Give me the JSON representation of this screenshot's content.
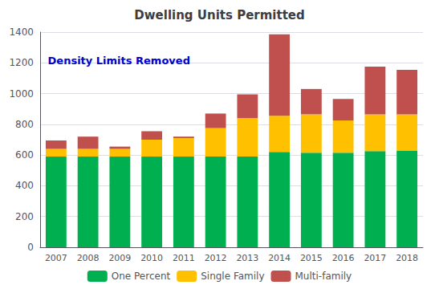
{
  "chart_data": {
    "type": "bar",
    "title": "Dwelling Units Permitted",
    "categories": [
      "2007",
      "2008",
      "2009",
      "2010",
      "2011",
      "2012",
      "2013",
      "2014",
      "2015",
      "2016",
      "2017",
      "2018"
    ],
    "series": [
      {
        "name": "One Percent",
        "color": "#00b050",
        "values": [
          590,
          590,
          590,
          590,
          590,
          590,
          590,
          620,
          615,
          615,
          625,
          630
        ]
      },
      {
        "name": "Single Family",
        "color": "#ffc000",
        "values": [
          50,
          50,
          50,
          110,
          120,
          185,
          250,
          235,
          250,
          210,
          240,
          235
        ]
      },
      {
        "name": "Multi-family",
        "color": "#c0504d",
        "values": [
          55,
          80,
          15,
          55,
          10,
          95,
          155,
          530,
          165,
          140,
          310,
          290
        ]
      }
    ],
    "stacked": true,
    "ylim": [
      0,
      1400
    ],
    "yticks": [
      0,
      200,
      400,
      600,
      800,
      1000,
      1200,
      1400
    ],
    "grid": true,
    "legend": "bottom",
    "annotations": [
      {
        "text": "Density Limits Removed",
        "color": "#0000cd"
      }
    ]
  }
}
